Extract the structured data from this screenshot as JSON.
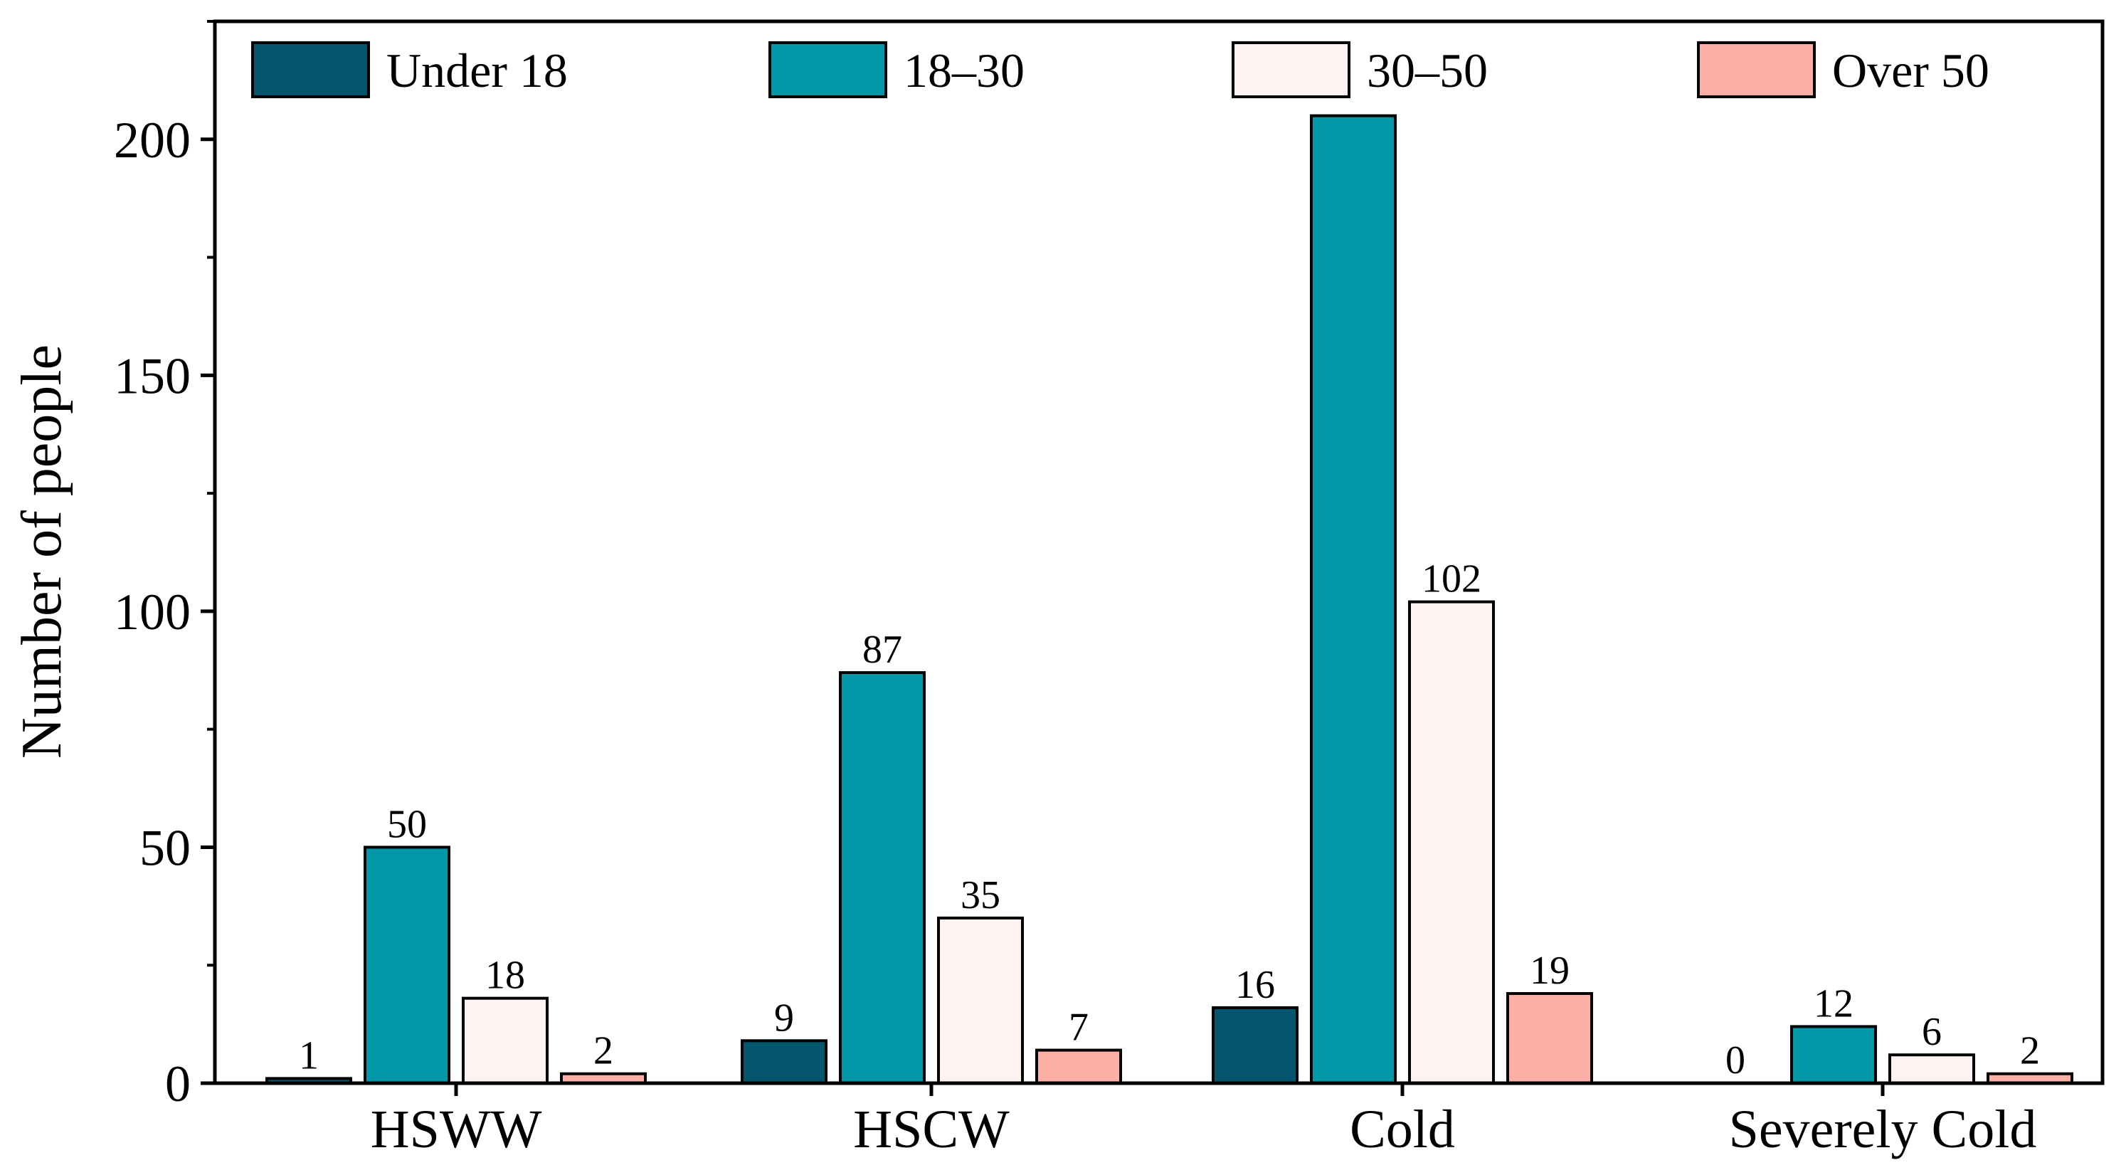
{
  "chart_data": {
    "type": "bar",
    "title": "",
    "xlabel": "",
    "ylabel": "Number of people",
    "ylim": [
      0,
      225
    ],
    "yticks": [
      0,
      50,
      100,
      150,
      200
    ],
    "grid": false,
    "legend_position": "top",
    "categories": [
      "HSWW",
      "HSCW",
      "Cold",
      "Severely Cold"
    ],
    "series": [
      {
        "name": "Under 18",
        "color": "#04566E",
        "values": [
          1,
          9,
          16,
          0
        ]
      },
      {
        "name": "18–30",
        "color": "#0398A8",
        "values": [
          50,
          87,
          205,
          12
        ]
      },
      {
        "name": "30–50",
        "color": "#FEF3F1",
        "values": [
          18,
          35,
          102,
          6
        ]
      },
      {
        "name": "Over 50",
        "color": "#FDAFA6",
        "values": [
          2,
          7,
          19,
          2
        ]
      }
    ],
    "data_labels": [
      [
        "1",
        "50",
        "18",
        "2"
      ],
      [
        "9",
        "87",
        "35",
        "7"
      ],
      [
        "16",
        "",
        "102",
        "19"
      ],
      [
        "0",
        "12",
        "6",
        "2"
      ]
    ]
  }
}
